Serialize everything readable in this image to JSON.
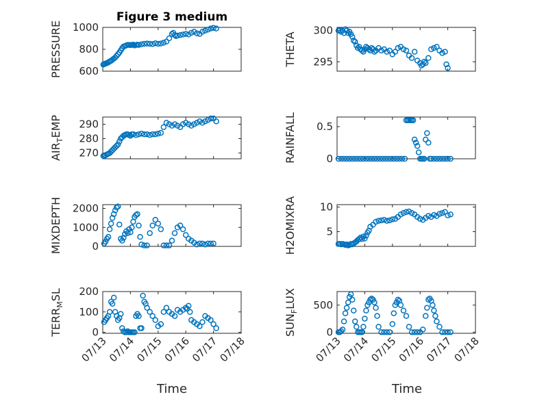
{
  "figure": {
    "title": "Figure 3 medium",
    "xlabel": "Time"
  },
  "chart_data": [
    {
      "type": "scatter",
      "ylabel_main": "PRESSURE",
      "ylabel_sub": "",
      "xlim": [
        0,
        5
      ],
      "ylim": [
        600,
        1000
      ],
      "yticks": [
        600,
        800,
        1000
      ],
      "ytick_labels": [
        "600",
        "800",
        "1000"
      ],
      "xticks": [
        0,
        1,
        2,
        3,
        4,
        5
      ],
      "xtick_labels": [
        "07/13",
        "07/14",
        "07/15",
        "07/16",
        "07/17",
        "07/18"
      ],
      "show_xtick_labels": false,
      "x": [
        0.02,
        0.05,
        0.08,
        0.12,
        0.15,
        0.2,
        0.25,
        0.3,
        0.35,
        0.4,
        0.45,
        0.5,
        0.55,
        0.6,
        0.65,
        0.7,
        0.75,
        0.8,
        0.85,
        0.9,
        0.95,
        1.0,
        1.05,
        1.1,
        1.15,
        1.2,
        1.25,
        1.3,
        1.4,
        1.5,
        1.6,
        1.7,
        1.8,
        1.9,
        2.0,
        2.1,
        2.2,
        2.3,
        2.4,
        2.5,
        2.55,
        2.6,
        2.65,
        2.7,
        2.8,
        2.9,
        3.0,
        3.1,
        3.2,
        3.3,
        3.4,
        3.5,
        3.6,
        3.7,
        3.8,
        3.9,
        4.0,
        4.1
      ],
      "y": [
        660,
        665,
        668,
        670,
        675,
        680,
        688,
        695,
        705,
        715,
        725,
        740,
        755,
        770,
        790,
        810,
        825,
        830,
        835,
        840,
        840,
        838,
        840,
        842,
        835,
        838,
        842,
        840,
        845,
        850,
        852,
        850,
        848,
        855,
        850,
        852,
        860,
        870,
        900,
        940,
        950,
        930,
        920,
        925,
        930,
        935,
        940,
        935,
        950,
        960,
        945,
        940,
        960,
        970,
        980,
        990,
        995,
        990
      ]
    },
    {
      "type": "scatter",
      "ylabel_main": "THETA",
      "ylabel_sub": "",
      "xlim": [
        0,
        5
      ],
      "ylim": [
        293.5,
        300.5
      ],
      "yticks": [
        295,
        300
      ],
      "ytick_labels": [
        "295",
        "300"
      ],
      "xticks": [
        0,
        1,
        2,
        3,
        4,
        5
      ],
      "xtick_labels": [
        "07/13",
        "07/14",
        "07/15",
        "07/16",
        "07/17",
        "07/18"
      ],
      "show_xtick_labels": false,
      "x": [
        0.05,
        0.1,
        0.15,
        0.2,
        0.25,
        0.3,
        0.35,
        0.4,
        0.45,
        0.5,
        0.55,
        0.6,
        0.65,
        0.7,
        0.75,
        0.8,
        0.85,
        0.9,
        0.95,
        1.0,
        1.05,
        1.1,
        1.15,
        1.2,
        1.25,
        1.3,
        1.35,
        1.4,
        1.5,
        1.6,
        1.7,
        1.8,
        1.9,
        2.0,
        2.1,
        2.2,
        2.3,
        2.4,
        2.5,
        2.6,
        2.7,
        2.8,
        2.9,
        3.0,
        3.05,
        3.1,
        3.15,
        3.2,
        3.3,
        3.4,
        3.5,
        3.6,
        3.7,
        3.8,
        3.9,
        3.95,
        4.0
      ],
      "y": [
        300,
        300,
        299.8,
        300,
        299.6,
        300.2,
        300,
        299.6,
        299.8,
        299.4,
        299,
        298.4,
        298.2,
        297.6,
        297.2,
        297.4,
        297,
        296.8,
        296.6,
        297,
        297.4,
        297.2,
        297,
        296.8,
        297.2,
        297,
        296.6,
        296.8,
        297.2,
        296.8,
        297,
        296.6,
        296.8,
        296.2,
        296.6,
        297.2,
        297.4,
        297,
        296.8,
        296,
        295.6,
        296.6,
        295.2,
        294.8,
        294.4,
        294.6,
        295,
        294.8,
        295.6,
        297,
        297.2,
        297.4,
        296.8,
        296.4,
        296.6,
        294.6,
        294
      ]
    },
    {
      "type": "scatter",
      "ylabel_main": "AIR",
      "ylabel_sub": "T",
      "ylabel_tail": "EMP",
      "xlim": [
        0,
        5
      ],
      "ylim": [
        266,
        295
      ],
      "yticks": [
        270,
        280,
        290
      ],
      "ytick_labels": [
        "270",
        "280",
        "290"
      ],
      "xticks": [
        0,
        1,
        2,
        3,
        4,
        5
      ],
      "xtick_labels": [
        "07/13",
        "07/14",
        "07/15",
        "07/16",
        "07/17",
        "07/18"
      ],
      "show_xtick_labels": false,
      "x": [
        0.02,
        0.06,
        0.1,
        0.15,
        0.2,
        0.25,
        0.3,
        0.35,
        0.4,
        0.45,
        0.5,
        0.55,
        0.6,
        0.65,
        0.7,
        0.75,
        0.8,
        0.85,
        0.9,
        0.95,
        1.0,
        1.05,
        1.1,
        1.2,
        1.3,
        1.4,
        1.5,
        1.6,
        1.7,
        1.8,
        1.9,
        2.0,
        2.1,
        2.2,
        2.3,
        2.4,
        2.5,
        2.6,
        2.7,
        2.8,
        2.9,
        3.0,
        3.1,
        3.2,
        3.3,
        3.4,
        3.5,
        3.6,
        3.7,
        3.8,
        3.9,
        4.0,
        4.1
      ],
      "y": [
        268,
        268,
        268.5,
        269,
        269.5,
        270,
        271,
        272,
        273,
        274,
        275,
        276,
        278,
        280,
        281,
        282,
        282.5,
        283,
        283,
        282.5,
        282,
        283,
        283,
        282.5,
        283,
        283.5,
        283,
        283,
        282.5,
        283,
        283,
        283.5,
        284,
        288,
        291,
        290,
        289,
        290,
        289,
        288,
        290,
        291,
        290,
        289,
        290,
        291,
        292,
        291,
        292,
        293,
        294,
        294,
        292
      ]
    },
    {
      "type": "scatter",
      "ylabel_main": "RAINFALL",
      "ylabel_sub": "",
      "xlim": [
        0,
        5
      ],
      "ylim": [
        0,
        0.65
      ],
      "yticks": [
        0,
        0.5
      ],
      "ytick_labels": [
        "0",
        "0.5"
      ],
      "xticks": [
        0,
        1,
        2,
        3,
        4,
        5
      ],
      "xtick_labels": [
        "07/13",
        "07/14",
        "07/15",
        "07/16",
        "07/17",
        "07/18"
      ],
      "show_xtick_labels": false,
      "x": [
        0.05,
        0.15,
        0.25,
        0.35,
        0.45,
        0.55,
        0.65,
        0.75,
        0.85,
        0.95,
        1.05,
        1.15,
        1.25,
        1.35,
        1.45,
        1.55,
        1.65,
        1.75,
        1.85,
        1.95,
        2.05,
        2.15,
        2.25,
        2.35,
        2.45,
        2.5,
        2.55,
        2.6,
        2.65,
        2.7,
        2.75,
        2.8,
        2.85,
        2.9,
        2.95,
        3.0,
        3.05,
        3.1,
        3.15,
        3.2,
        3.25,
        3.3,
        3.35,
        3.4,
        3.5,
        3.6,
        3.7,
        3.8,
        3.9,
        4.0,
        4.1
      ],
      "y": [
        0,
        0,
        0,
        0,
        0,
        0,
        0,
        0,
        0,
        0,
        0,
        0,
        0,
        0,
        0,
        0,
        0,
        0,
        0,
        0,
        0,
        0,
        0,
        0,
        0,
        0.6,
        0.6,
        0.6,
        0.6,
        0.6,
        0.6,
        0.3,
        0.25,
        0.2,
        0.1,
        0,
        0,
        0,
        0,
        0.3,
        0.4,
        0.25,
        0,
        0,
        0,
        0,
        0,
        0,
        0,
        0,
        0
      ]
    },
    {
      "type": "scatter",
      "ylabel_main": "MIXDEPTH",
      "ylabel_sub": "",
      "xlim": [
        0,
        5
      ],
      "ylim": [
        0,
        2200
      ],
      "yticks": [
        0,
        1000,
        2000
      ],
      "ytick_labels": [
        "0",
        "1000",
        "2000"
      ],
      "xticks": [
        0,
        1,
        2,
        3,
        4,
        5
      ],
      "xtick_labels": [
        "07/13",
        "07/14",
        "07/15",
        "07/16",
        "07/17",
        "07/18"
      ],
      "show_xtick_labels": false,
      "x": [
        0.05,
        0.1,
        0.15,
        0.2,
        0.25,
        0.3,
        0.35,
        0.4,
        0.45,
        0.5,
        0.55,
        0.6,
        0.65,
        0.7,
        0.75,
        0.8,
        0.85,
        0.9,
        0.95,
        1.0,
        1.05,
        1.1,
        1.15,
        1.2,
        1.25,
        1.3,
        1.35,
        1.4,
        1.5,
        1.6,
        1.7,
        1.8,
        1.9,
        2.0,
        2.1,
        2.2,
        2.3,
        2.4,
        2.5,
        2.6,
        2.7,
        2.8,
        2.9,
        3.0,
        3.1,
        3.2,
        3.3,
        3.4,
        3.5,
        3.6,
        3.7,
        3.8,
        3.9,
        4.0
      ],
      "y": [
        150,
        250,
        400,
        500,
        900,
        1200,
        1500,
        1700,
        1900,
        2050,
        2100,
        1150,
        400,
        300,
        450,
        650,
        800,
        700,
        900,
        750,
        1000,
        1300,
        1550,
        1650,
        1700,
        1100,
        500,
        100,
        50,
        50,
        700,
        1100,
        1400,
        1200,
        900,
        50,
        50,
        50,
        300,
        700,
        1000,
        1100,
        900,
        600,
        400,
        300,
        200,
        100,
        150,
        150,
        100,
        150,
        150,
        150
      ]
    },
    {
      "type": "scatter",
      "ylabel_main": "H2OMIXRA",
      "ylabel_sub": "",
      "xlim": [
        0,
        5
      ],
      "ylim": [
        2,
        10.5
      ],
      "yticks": [
        5,
        10
      ],
      "ytick_labels": [
        "5",
        "10"
      ],
      "xticks": [
        0,
        1,
        2,
        3,
        4,
        5
      ],
      "xtick_labels": [
        "07/13",
        "07/14",
        "07/15",
        "07/16",
        "07/17",
        "07/18"
      ],
      "show_xtick_labels": false,
      "x": [
        0.05,
        0.1,
        0.15,
        0.2,
        0.25,
        0.3,
        0.35,
        0.4,
        0.45,
        0.5,
        0.55,
        0.6,
        0.65,
        0.7,
        0.75,
        0.8,
        0.85,
        0.9,
        0.95,
        1.0,
        1.05,
        1.1,
        1.15,
        1.2,
        1.3,
        1.4,
        1.5,
        1.6,
        1.7,
        1.8,
        1.9,
        2.0,
        2.1,
        2.2,
        2.3,
        2.4,
        2.5,
        2.6,
        2.7,
        2.8,
        2.9,
        3.0,
        3.1,
        3.2,
        3.3,
        3.4,
        3.5,
        3.6,
        3.7,
        3.8,
        3.9,
        4.0,
        4.1
      ],
      "y": [
        2.5,
        2.5,
        2.4,
        2.5,
        2.4,
        2.3,
        2.4,
        2.2,
        2.3,
        2.5,
        2.4,
        2.6,
        2.8,
        3,
        3.3,
        3.5,
        3.8,
        3.5,
        4,
        3.6,
        4.2,
        4.8,
        5.2,
        6,
        6.4,
        7,
        7.2,
        7.3,
        7.4,
        7.2,
        7.3,
        7.5,
        7.6,
        8,
        8.5,
        8.8,
        9,
        9.1,
        8.8,
        8.5,
        8,
        7.6,
        7.4,
        7.8,
        8.2,
        8,
        8.4,
        8.2,
        8.6,
        8.8,
        9,
        8.3,
        8.5
      ]
    },
    {
      "type": "scatter",
      "ylabel_main": "TERR",
      "ylabel_sub": "M",
      "ylabel_tail": "SL",
      "xlim": [
        0,
        5
      ],
      "ylim": [
        -5,
        200
      ],
      "yticks": [
        0,
        100,
        200
      ],
      "ytick_labels": [
        "0",
        "100",
        "200"
      ],
      "xticks": [
        0,
        1,
        2,
        3,
        4,
        5
      ],
      "xtick_labels": [
        "07/13",
        "07/14",
        "07/15",
        "07/16",
        "07/17",
        "07/18"
      ],
      "show_xtick_labels": true,
      "x": [
        0.05,
        0.1,
        0.15,
        0.2,
        0.25,
        0.3,
        0.35,
        0.4,
        0.45,
        0.5,
        0.55,
        0.6,
        0.65,
        0.7,
        0.75,
        0.8,
        0.85,
        0.9,
        0.95,
        1.0,
        1.05,
        1.1,
        1.15,
        1.2,
        1.25,
        1.3,
        1.35,
        1.4,
        1.45,
        1.5,
        1.55,
        1.6,
        1.7,
        1.8,
        1.9,
        2.0,
        2.1,
        2.2,
        2.3,
        2.4,
        2.5,
        2.6,
        2.7,
        2.8,
        2.9,
        3.0,
        3.05,
        3.1,
        3.15,
        3.2,
        3.3,
        3.4,
        3.5,
        3.6,
        3.7,
        3.8,
        3.9,
        4.0,
        4.1
      ],
      "y": [
        50,
        60,
        70,
        80,
        100,
        150,
        140,
        170,
        100,
        80,
        60,
        70,
        90,
        20,
        5,
        0,
        0,
        5,
        0,
        0,
        0,
        0,
        0,
        80,
        90,
        80,
        20,
        20,
        180,
        150,
        140,
        120,
        100,
        80,
        60,
        30,
        40,
        100,
        120,
        100,
        90,
        80,
        110,
        100,
        110,
        120,
        115,
        130,
        100,
        60,
        50,
        40,
        30,
        50,
        80,
        70,
        60,
        40,
        20
      ]
    },
    {
      "type": "scatter",
      "ylabel_main": "SUN",
      "ylabel_sub": "F",
      "ylabel_tail": "LUX",
      "xlim": [
        0,
        5
      ],
      "ylim": [
        -20,
        750
      ],
      "yticks": [
        0,
        500
      ],
      "ytick_labels": [
        "0",
        "500"
      ],
      "xticks": [
        0,
        1,
        2,
        3,
        4,
        5
      ],
      "xtick_labels": [
        "07/13",
        "07/14",
        "07/15",
        "07/16",
        "07/17",
        "07/18"
      ],
      "show_xtick_labels": true,
      "x": [
        0.05,
        0.1,
        0.15,
        0.2,
        0.25,
        0.3,
        0.35,
        0.4,
        0.45,
        0.5,
        0.55,
        0.6,
        0.65,
        0.7,
        0.75,
        0.8,
        0.85,
        0.9,
        0.95,
        1.0,
        1.05,
        1.1,
        1.15,
        1.2,
        1.25,
        1.3,
        1.35,
        1.4,
        1.45,
        1.5,
        1.6,
        1.7,
        1.8,
        1.9,
        2.0,
        2.05,
        2.1,
        2.15,
        2.2,
        2.25,
        2.3,
        2.4,
        2.5,
        2.6,
        2.7,
        2.8,
        2.9,
        3.0,
        3.1,
        3.2,
        3.25,
        3.3,
        3.35,
        3.4,
        3.45,
        3.5,
        3.55,
        3.6,
        3.7,
        3.8,
        3.9,
        4.0,
        4.1
      ],
      "y": [
        0,
        0,
        20,
        50,
        200,
        350,
        450,
        550,
        650,
        700,
        600,
        400,
        200,
        100,
        0,
        0,
        0,
        0,
        100,
        250,
        400,
        500,
        550,
        600,
        620,
        600,
        550,
        450,
        300,
        100,
        0,
        0,
        0,
        0,
        150,
        350,
        500,
        550,
        600,
        580,
        500,
        400,
        300,
        100,
        0,
        0,
        0,
        0,
        50,
        300,
        450,
        600,
        620,
        580,
        500,
        400,
        300,
        200,
        100,
        0,
        0,
        0,
        0
      ]
    }
  ]
}
